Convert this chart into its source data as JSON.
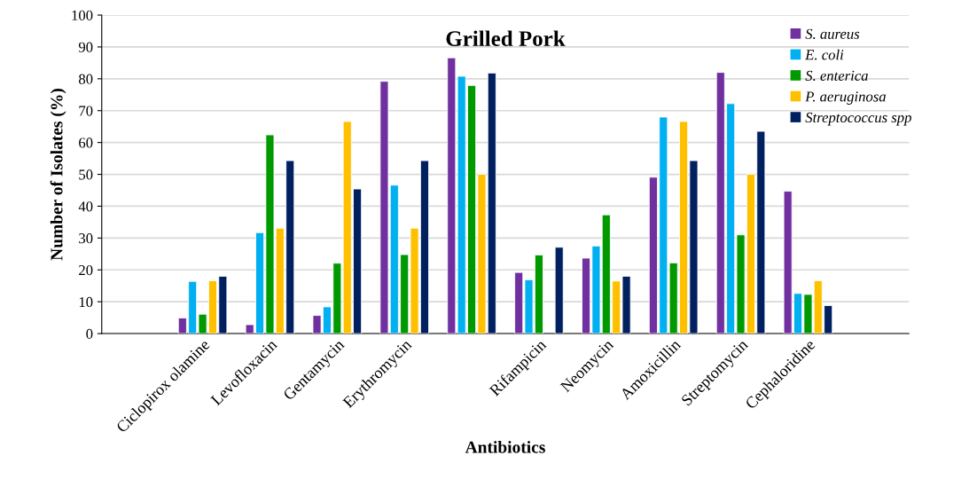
{
  "chart_data": {
    "type": "bar",
    "title": "Grilled Pork",
    "xlabel": "Antibiotics",
    "ylabel": "Number of Isolates (%)",
    "categories": [
      null,
      "Ciclopirox olamine",
      "Levofloxacin",
      "Gentamycin",
      "Erythromycin",
      null,
      "Rifampicin",
      "Neomycin",
      "Amoxicillin",
      "Streptomycin",
      "Cephaloridine",
      null
    ],
    "series": [
      {
        "name": "S. aureus",
        "color": "#7030a0",
        "values": [
          null,
          4.9,
          2.8,
          5.7,
          79.2,
          86.6,
          19.2,
          23.7,
          49.1,
          82.0,
          44.7,
          null
        ]
      },
      {
        "name": "E. coli",
        "color": "#00b0f0",
        "values": [
          null,
          16.4,
          31.7,
          8.4,
          46.6,
          80.8,
          16.9,
          27.5,
          68.0,
          72.2,
          12.6,
          null
        ]
      },
      {
        "name": "S. enterica",
        "color": "#009900",
        "values": [
          null,
          6.1,
          62.4,
          22.1,
          24.8,
          77.9,
          24.7,
          37.3,
          22.2,
          31.0,
          12.3,
          null
        ]
      },
      {
        "name": "P. aeruginosa",
        "color": "#ffc000",
        "values": [
          null,
          16.6,
          33.1,
          66.6,
          33.1,
          50.0,
          null,
          16.5,
          66.6,
          50.0,
          16.6,
          null
        ]
      },
      {
        "name": "Streptococcus spp",
        "color": "#002060",
        "values": [
          null,
          18.0,
          54.3,
          45.4,
          54.3,
          81.8,
          27.1,
          18.0,
          54.3,
          63.5,
          8.8,
          null
        ]
      }
    ],
    "ylim": [
      0,
      100
    ],
    "yticks": [
      0,
      10,
      20,
      30,
      40,
      50,
      60,
      70,
      80,
      90,
      100
    ],
    "grid": "y",
    "legend": "top right"
  }
}
